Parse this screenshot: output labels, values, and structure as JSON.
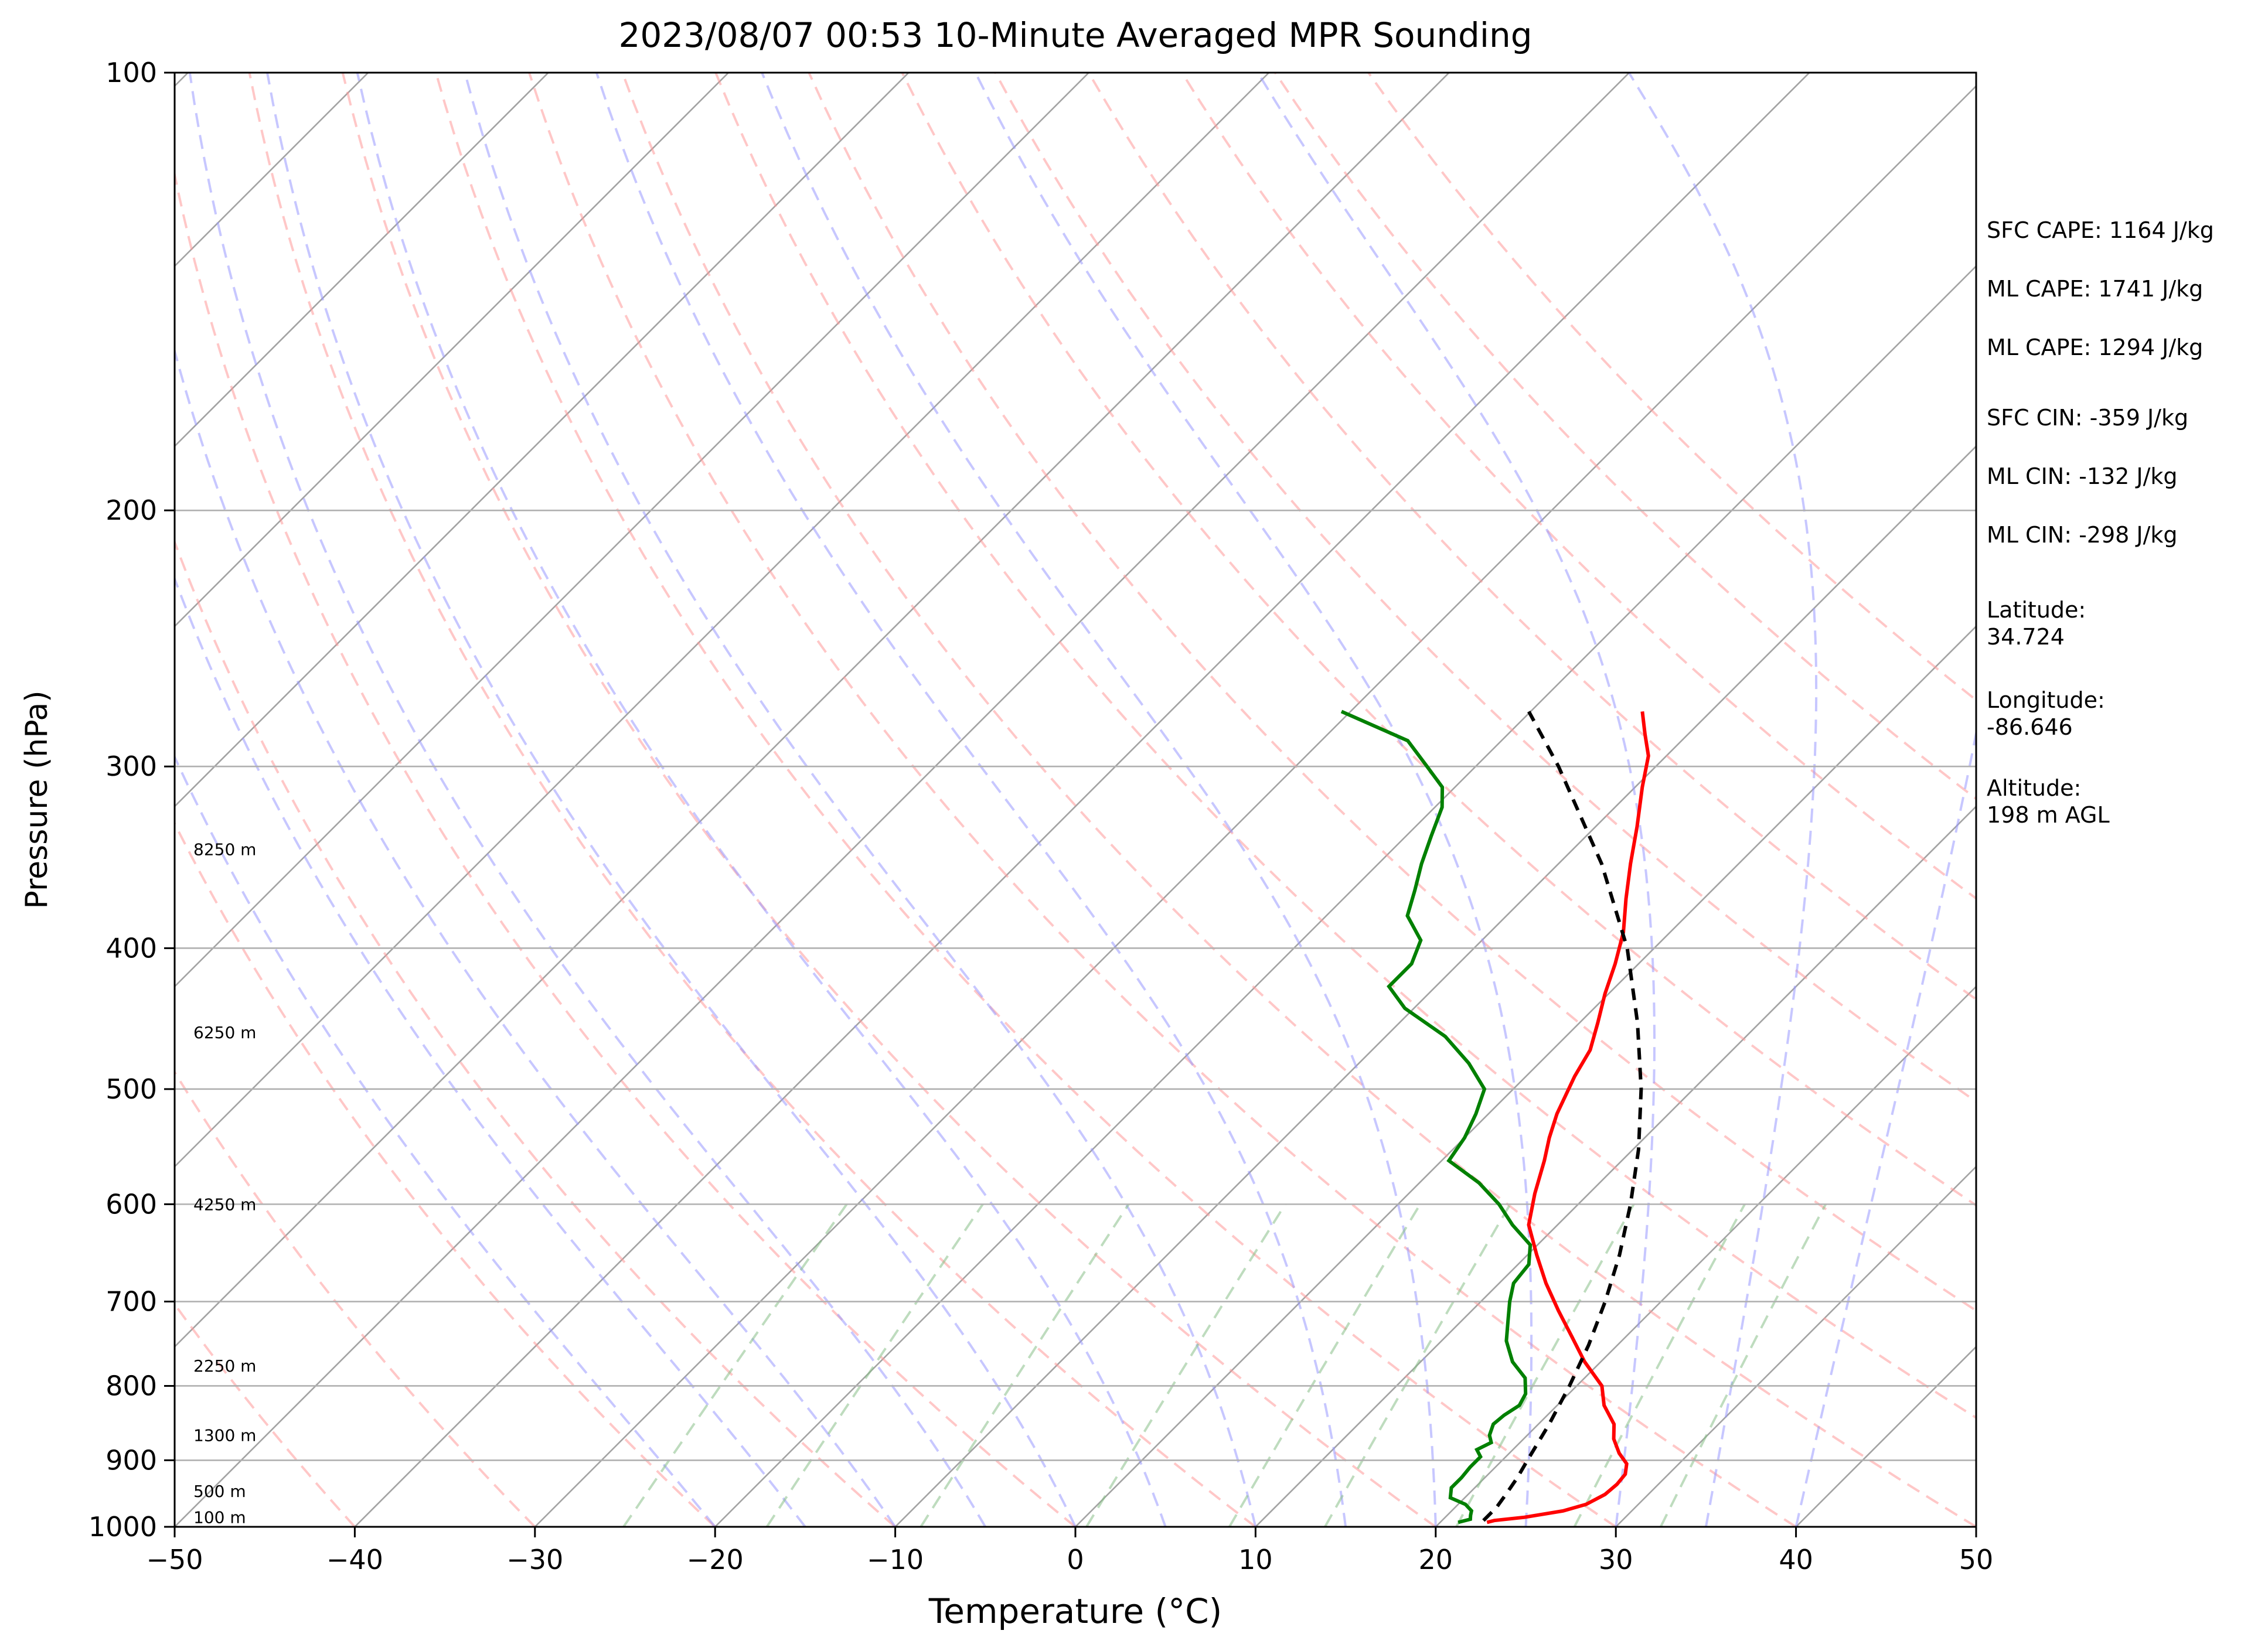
{
  "chart_data": {
    "type": "line",
    "title": "2023/08/07 00:53 10-Minute Averaged MPR Sounding",
    "xlabel": "Temperature (°C)",
    "ylabel": "Pressure (hPa)",
    "xlim": [
      -50,
      50
    ],
    "ylim": [
      1000,
      100
    ],
    "y_scale": "log",
    "x_ticks": [
      "−50",
      "−40",
      "−30",
      "−20",
      "−10",
      "0",
      "10",
      "20",
      "30",
      "40",
      "50"
    ],
    "y_ticks": [
      "100",
      "200",
      "300",
      "400",
      "500",
      "600",
      "700",
      "800",
      "900",
      "1000"
    ],
    "grid": true,
    "skew_degrees": 45,
    "colors": {
      "temperature": "#ff0000",
      "dewpoint": "#008000",
      "parcel": "#000000",
      "dry_adiabats": "#ff9999",
      "moist_adiabats": "#9999ff",
      "mixing_ratio": "#88c088",
      "isotherms": "#999999"
    },
    "height_labels": [
      {
        "p": 985,
        "text": "100 m"
      },
      {
        "p": 945,
        "text": "500 m"
      },
      {
        "p": 865,
        "text": "1300 m"
      },
      {
        "p": 775,
        "text": "2250 m"
      },
      {
        "p": 600,
        "text": "4250 m"
      },
      {
        "p": 457,
        "text": "6250 m"
      },
      {
        "p": 342,
        "text": "8250 m"
      }
    ],
    "series": [
      {
        "style": "solid",
        "color": "#ff0000",
        "points": [
          [
            993,
            22.6
          ],
          [
            990,
            22.9
          ],
          [
            985,
            24.4
          ],
          [
            975,
            26.2
          ],
          [
            965,
            27.1
          ],
          [
            950,
            27.6
          ],
          [
            935,
            27.7
          ],
          [
            920,
            27.6
          ],
          [
            905,
            27.1
          ],
          [
            890,
            26.1
          ],
          [
            870,
            25.0
          ],
          [
            850,
            24.2
          ],
          [
            825,
            22.6
          ],
          [
            800,
            21.4
          ],
          [
            770,
            19.1
          ],
          [
            740,
            17.0
          ],
          [
            710,
            14.8
          ],
          [
            680,
            12.6
          ],
          [
            650,
            10.5
          ],
          [
            620,
            8.4
          ],
          [
            590,
            7.0
          ],
          [
            560,
            5.7
          ],
          [
            540,
            4.7
          ],
          [
            520,
            3.8
          ],
          [
            490,
            2.7
          ],
          [
            470,
            2.1
          ],
          [
            450,
            1.0
          ],
          [
            430,
            -0.2
          ],
          [
            410,
            -1.3
          ],
          [
            390,
            -2.6
          ],
          [
            370,
            -4.3
          ],
          [
            350,
            -6.0
          ],
          [
            330,
            -7.7
          ],
          [
            310,
            -9.6
          ],
          [
            295,
            -11.0
          ],
          [
            285,
            -12.4
          ],
          [
            275,
            -13.8
          ]
        ]
      },
      {
        "style": "solid",
        "color": "#008000",
        "points": [
          [
            993,
            21.0
          ],
          [
            988,
            21.5
          ],
          [
            982,
            21.3
          ],
          [
            975,
            21.1
          ],
          [
            965,
            20.4
          ],
          [
            955,
            19.2
          ],
          [
            940,
            18.7
          ],
          [
            925,
            18.7
          ],
          [
            910,
            18.6
          ],
          [
            895,
            18.6
          ],
          [
            885,
            18.0
          ],
          [
            875,
            18.4
          ],
          [
            865,
            17.9
          ],
          [
            850,
            17.5
          ],
          [
            838,
            17.6
          ],
          [
            825,
            17.9
          ],
          [
            810,
            17.6
          ],
          [
            790,
            16.7
          ],
          [
            770,
            15.1
          ],
          [
            745,
            13.6
          ],
          [
            720,
            12.5
          ],
          [
            700,
            11.6
          ],
          [
            680,
            10.8
          ],
          [
            660,
            10.6
          ],
          [
            640,
            9.6
          ],
          [
            620,
            7.5
          ],
          [
            600,
            5.6
          ],
          [
            580,
            3.3
          ],
          [
            560,
            0.4
          ],
          [
            540,
            0.0
          ],
          [
            520,
            -0.7
          ],
          [
            500,
            -1.6
          ],
          [
            480,
            -3.9
          ],
          [
            460,
            -6.7
          ],
          [
            440,
            -10.5
          ],
          [
            425,
            -12.6
          ],
          [
            410,
            -12.6
          ],
          [
            395,
            -13.4
          ],
          [
            380,
            -15.5
          ],
          [
            365,
            -16.5
          ],
          [
            350,
            -17.6
          ],
          [
            335,
            -18.6
          ],
          [
            320,
            -19.6
          ],
          [
            310,
            -20.7
          ],
          [
            300,
            -22.7
          ],
          [
            288,
            -25.2
          ],
          [
            275,
            -30.5
          ]
        ]
      },
      {
        "style": "dashed",
        "color": "#000000",
        "points": [
          [
            990,
            22.3
          ],
          [
            970,
            22.3
          ],
          [
            950,
            22.1
          ],
          [
            925,
            21.8
          ],
          [
            900,
            21.4
          ],
          [
            850,
            20.6
          ],
          [
            800,
            19.6
          ],
          [
            750,
            18.4
          ],
          [
            700,
            16.9
          ],
          [
            650,
            15.1
          ],
          [
            600,
            12.9
          ],
          [
            550,
            10.3
          ],
          [
            500,
            7.1
          ],
          [
            450,
            3.2
          ],
          [
            400,
            -1.5
          ],
          [
            350,
            -7.6
          ],
          [
            300,
            -15.4
          ],
          [
            275,
            -20.1
          ]
        ]
      }
    ]
  },
  "info_panel": {
    "sfc_cape": "SFC CAPE: 1164 J/kg",
    "ml_cape_1": "ML CAPE: 1741 J/kg",
    "ml_cape_2": "ML CAPE: 1294 J/kg",
    "sfc_cin": "SFC CIN: -359 J/kg",
    "ml_cin_1": "ML CIN: -132 J/kg",
    "ml_cin_2": "ML CIN: -298 J/kg",
    "latitude": "Latitude:\n34.724",
    "longitude": "Longitude:\n-86.646",
    "altitude": "Altitude:\n198 m AGL"
  }
}
